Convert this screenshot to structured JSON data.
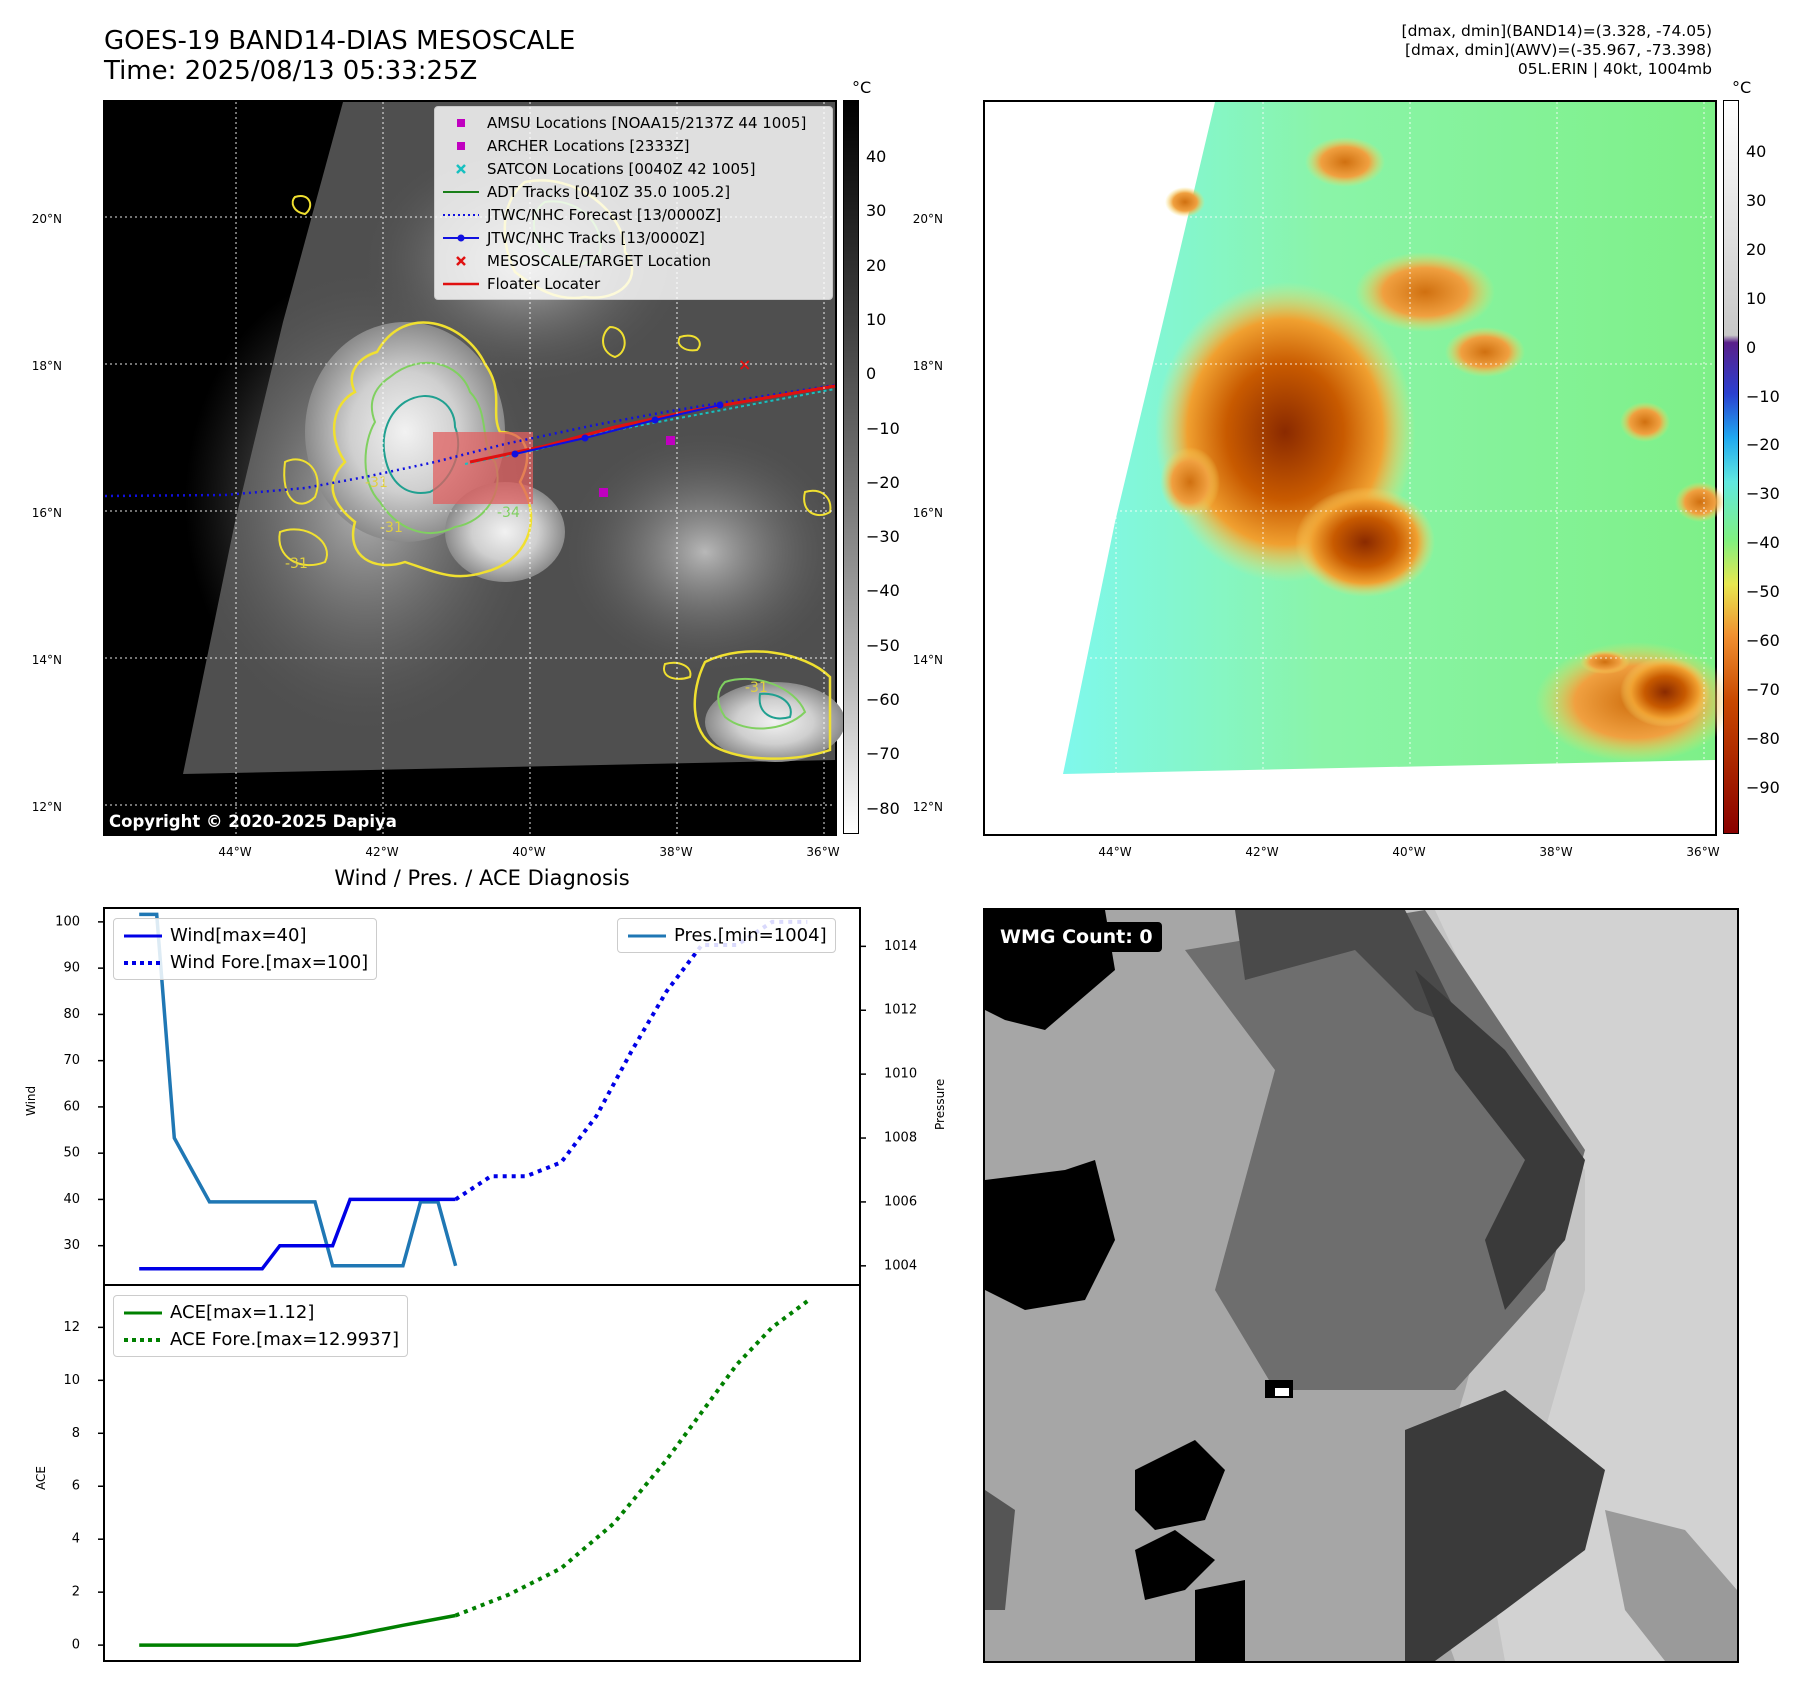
{
  "header": {
    "title_line1": "GOES-19 BAND14-DIAS MESOSCALE",
    "title_line2": "Time: 2025/08/13 05:33:25Z",
    "info_line1": "[dmax, dmin](BAND14)=(3.328, -74.05)",
    "info_line2": "[dmax, dmin](AWV)=(-35.967, -73.398)",
    "info_line3": "05L.ERIN | 40kt, 1004mb"
  },
  "map_axes": {
    "lat_labels": [
      "20°N",
      "18°N",
      "16°N",
      "14°N",
      "12°N"
    ],
    "lon_labels": [
      "44°W",
      "42°W",
      "40°W",
      "38°W",
      "36°W"
    ]
  },
  "ir_map": {
    "legend": [
      {
        "label": "AMSU Locations [NOAA15/2137Z 44 1005]",
        "marker": "square",
        "color": "#c000c0"
      },
      {
        "label": "ARCHER Locations [2333Z]",
        "marker": "square",
        "color": "#c000c0"
      },
      {
        "label": "SATCON Locations [0040Z 42 1005]",
        "marker": "x",
        "color": "#17c0c0"
      },
      {
        "label": "ADT Tracks [0410Z 35.0 1005.2]",
        "marker": "line",
        "color": "#1a7f1a"
      },
      {
        "label": "JTWC/NHC Forecast [13/0000Z]",
        "marker": "dotted",
        "color": "#1010e0"
      },
      {
        "label": "JTWC/NHC Tracks [13/0000Z]",
        "marker": "line-dot",
        "color": "#1010e0"
      },
      {
        "label": "MESOSCALE/TARGET Location",
        "marker": "x",
        "color": "#e01010"
      },
      {
        "label": "Floater Locater",
        "marker": "line",
        "color": "#e01010"
      }
    ],
    "copyright": "Copyright © 2020-2025 Dapiya",
    "contour_labels": [
      "-31",
      "-31",
      "-31",
      "-34",
      "-31"
    ],
    "colorbar": {
      "unit": "°C",
      "ticks": [
        "40",
        "30",
        "20",
        "10",
        "0",
        "−10",
        "−20",
        "−30",
        "−40",
        "−50",
        "−60",
        "−70",
        "−80"
      ]
    }
  },
  "awv_map": {
    "colorbar": {
      "unit": "°C",
      "ticks": [
        "40",
        "30",
        "20",
        "10",
        "0",
        "−10",
        "−20",
        "−30",
        "−40",
        "−50",
        "−60",
        "−70",
        "−80",
        "−90"
      ]
    }
  },
  "diagnosis": {
    "title": "Wind / Pres. / ACE Diagnosis",
    "wind_ylabel": "Wind",
    "pres_ylabel": "Pressure",
    "ace_ylabel": "ACE",
    "wind_ticks": [
      "100",
      "90",
      "80",
      "70",
      "60",
      "50",
      "40",
      "30"
    ],
    "pres_ticks": [
      "1014",
      "1012",
      "1010",
      "1008",
      "1006",
      "1004"
    ],
    "ace_ticks": [
      "12",
      "10",
      "8",
      "6",
      "4",
      "2",
      "0"
    ],
    "legend_wind": "Wind[max=40]",
    "legend_wind_fore": "Wind Fore.[max=100]",
    "legend_pres": "Pres.[min=1004]",
    "legend_ace": "ACE[max=1.12]",
    "legend_ace_fore": "ACE Fore.[max=12.9937]",
    "colors": {
      "wind": "#0000e6",
      "pres": "#1f77b4",
      "ace": "#008000"
    }
  },
  "wmg": {
    "label": "WMG Count: 0"
  },
  "chart_data": [
    {
      "type": "line",
      "title": "Wind / Pres. / ACE Diagnosis",
      "ylabel": "Wind",
      "ylim": [
        21.5,
        103
      ],
      "series": [
        {
          "name": "Wind[max=40]",
          "x": [
            0,
            1,
            2,
            3,
            4,
            5,
            6,
            7,
            8,
            9,
            10,
            11,
            12,
            13,
            14,
            15,
            16,
            17,
            18
          ],
          "values": [
            25,
            25,
            25,
            25,
            25,
            25,
            25,
            25,
            30,
            30,
            30,
            30,
            40,
            40,
            40,
            40,
            40,
            40,
            40
          ]
        },
        {
          "name": "Wind Fore.[max=100]",
          "x": [
            18,
            20,
            22,
            24,
            26,
            28,
            30,
            32,
            34,
            36,
            38
          ],
          "values": [
            40,
            45,
            45,
            48,
            58,
            72,
            85,
            95,
            95,
            100,
            100
          ]
        }
      ]
    },
    {
      "type": "line",
      "ylabel": "Pressure",
      "ylim": [
        1003.4,
        1015.2
      ],
      "series": [
        {
          "name": "Pres.[min=1004]",
          "x": [
            0,
            1,
            2,
            3,
            4,
            5,
            6,
            7,
            8,
            9,
            10,
            11,
            12,
            13,
            14,
            15,
            16,
            17,
            18
          ],
          "values": [
            1015,
            1015,
            1008,
            1007,
            1006,
            1006,
            1006,
            1006,
            1006,
            1006,
            1006,
            1004,
            1004,
            1004,
            1004,
            1004,
            1006,
            1006,
            1004
          ]
        }
      ]
    },
    {
      "type": "line",
      "ylabel": "ACE",
      "ylim": [
        -0.6,
        13.6
      ],
      "series": [
        {
          "name": "ACE[max=1.12]",
          "x": [
            0,
            3,
            6,
            9,
            12,
            15,
            18
          ],
          "values": [
            0,
            0,
            0,
            0,
            0.35,
            0.75,
            1.12
          ]
        },
        {
          "name": "ACE Fore.[max=12.9937]",
          "x": [
            18,
            21,
            24,
            27,
            30,
            32,
            34,
            36,
            38
          ],
          "values": [
            1.12,
            1.9,
            2.9,
            4.6,
            7.0,
            8.8,
            10.6,
            12.0,
            12.99
          ]
        }
      ]
    }
  ]
}
